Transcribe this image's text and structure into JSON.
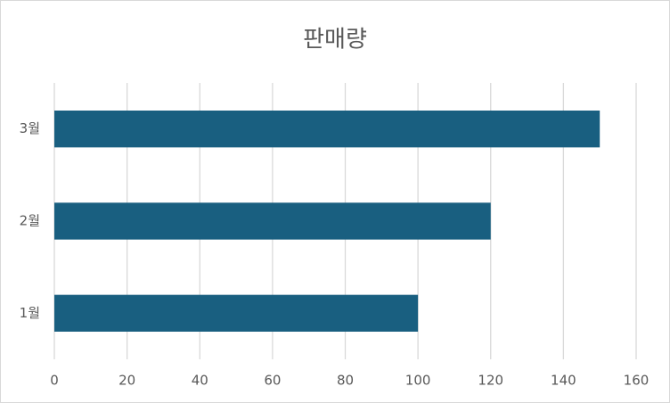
{
  "chart_data": {
    "type": "hbar",
    "title": "판매량",
    "categories": [
      "1월",
      "2월",
      "3월"
    ],
    "values": [
      100,
      120,
      150
    ],
    "color": "#195f80",
    "xlim": [
      0,
      160
    ],
    "xticks": [
      0,
      20,
      40,
      60,
      80,
      100,
      120,
      140,
      160
    ],
    "grid": true
  }
}
